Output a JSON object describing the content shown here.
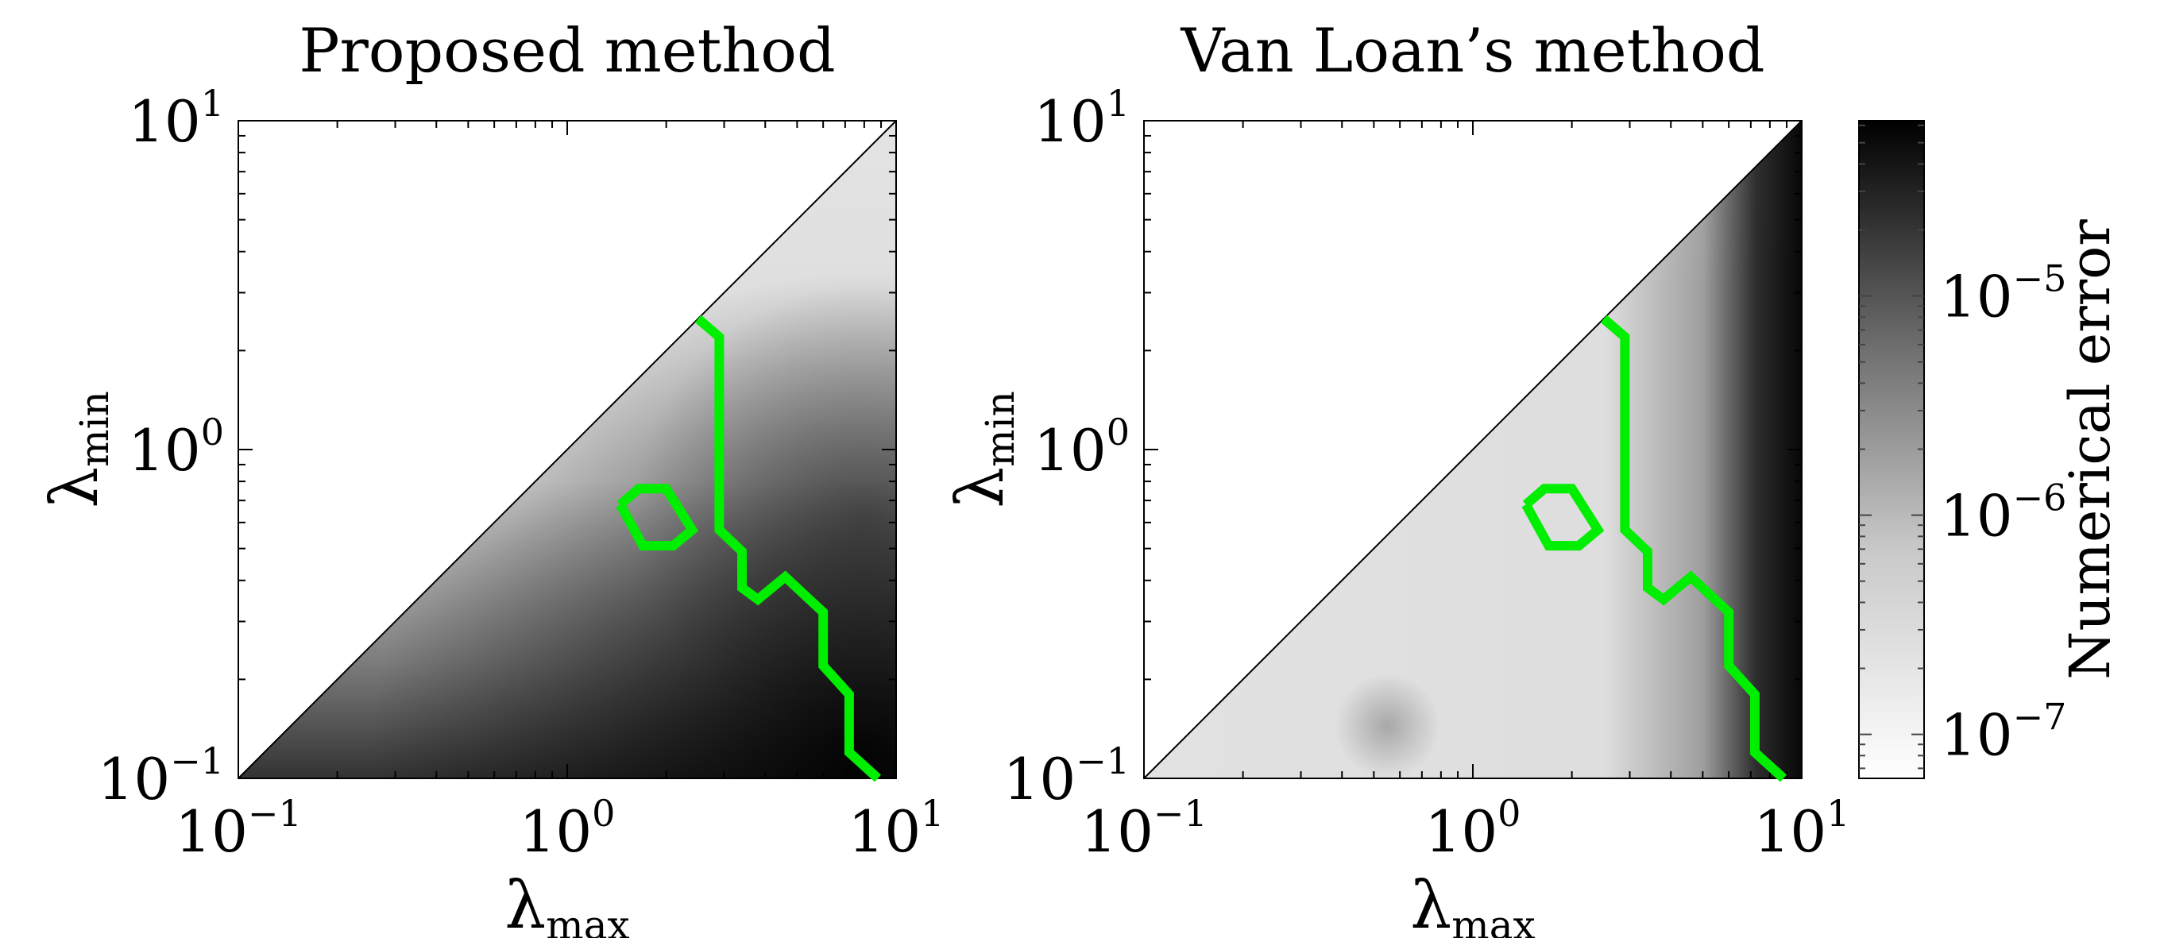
{
  "chart_data": [
    {
      "type": "heatmap",
      "title": "Proposed method",
      "xlabel": "λ",
      "xlabel_sub": "max",
      "ylabel": "λ",
      "ylabel_sub": "min",
      "xscale": "log",
      "yscale": "log",
      "xlim": [
        0.1,
        10
      ],
      "ylim": [
        0.1,
        10
      ],
      "x_ticks": [
        {
          "base": "10",
          "exp": "−1",
          "value": 0.1
        },
        {
          "base": "10",
          "exp": "0",
          "value": 1
        },
        {
          "base": "10",
          "exp": "1",
          "value": 10
        }
      ],
      "y_ticks": [
        {
          "base": "10",
          "exp": "−1",
          "value": 0.1
        },
        {
          "base": "10",
          "exp": "0",
          "value": 1
        },
        {
          "base": "10",
          "exp": "1",
          "value": 10
        }
      ],
      "diagonal": [
        [
          0.1,
          0.1
        ],
        [
          10,
          10
        ]
      ],
      "contour_color": "#00ee00",
      "contours": [
        [
          [
            2.5,
            2.5
          ],
          [
            2.9,
            2.2
          ],
          [
            2.9,
            0.57
          ],
          [
            3.4,
            0.49
          ],
          [
            3.4,
            0.38
          ],
          [
            3.8,
            0.35
          ],
          [
            4.6,
            0.41
          ],
          [
            6.0,
            0.32
          ],
          [
            6.0,
            0.22
          ],
          [
            7.2,
            0.18
          ],
          [
            7.2,
            0.12
          ],
          [
            8.8,
            0.1
          ]
        ],
        [
          [
            1.45,
            0.68
          ],
          [
            1.65,
            0.76
          ],
          [
            2.0,
            0.76
          ],
          [
            2.4,
            0.57
          ],
          [
            2.1,
            0.51
          ],
          [
            1.7,
            0.51
          ],
          [
            1.45,
            0.68
          ]
        ]
      ]
    },
    {
      "type": "heatmap",
      "title": "Van Loan’s method",
      "xlabel": "λ",
      "xlabel_sub": "max",
      "ylabel": "λ",
      "ylabel_sub": "min",
      "xscale": "log",
      "yscale": "log",
      "xlim": [
        0.1,
        10
      ],
      "ylim": [
        0.1,
        10
      ],
      "x_ticks": [
        {
          "base": "10",
          "exp": "−1",
          "value": 0.1
        },
        {
          "base": "10",
          "exp": "0",
          "value": 1
        },
        {
          "base": "10",
          "exp": "1",
          "value": 10
        }
      ],
      "y_ticks": [
        {
          "base": "10",
          "exp": "−1",
          "value": 0.1
        },
        {
          "base": "10",
          "exp": "0",
          "value": 1
        },
        {
          "base": "10",
          "exp": "1",
          "value": 10
        }
      ],
      "diagonal": [
        [
          0.1,
          0.1
        ],
        [
          10,
          10
        ]
      ],
      "contour_color": "#00ee00",
      "contours": [
        [
          [
            2.5,
            2.5
          ],
          [
            2.9,
            2.2
          ],
          [
            2.9,
            0.57
          ],
          [
            3.4,
            0.49
          ],
          [
            3.4,
            0.38
          ],
          [
            3.8,
            0.35
          ],
          [
            4.6,
            0.41
          ],
          [
            6.0,
            0.32
          ],
          [
            6.0,
            0.22
          ],
          [
            7.2,
            0.18
          ],
          [
            7.2,
            0.12
          ],
          [
            8.8,
            0.1
          ]
        ],
        [
          [
            1.45,
            0.68
          ],
          [
            1.65,
            0.76
          ],
          [
            2.0,
            0.76
          ],
          [
            2.4,
            0.57
          ],
          [
            2.1,
            0.51
          ],
          [
            1.7,
            0.51
          ],
          [
            1.45,
            0.68
          ]
        ]
      ]
    }
  ],
  "colorbar": {
    "label": "Numerical error",
    "scale": "log",
    "range": [
      6.3e-08,
      6.3e-05
    ],
    "color_low": "#ffffff",
    "color_high": "#000000",
    "ticks": [
      {
        "base": "10",
        "exp": "−7",
        "value": 1e-07
      },
      {
        "base": "10",
        "exp": "−6",
        "value": 1e-06
      },
      {
        "base": "10",
        "exp": "−5",
        "value": 1e-05
      }
    ]
  }
}
